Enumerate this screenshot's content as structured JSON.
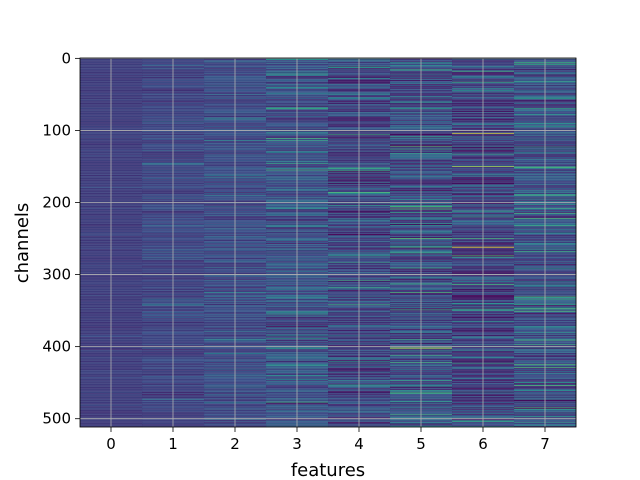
{
  "chart_data": {
    "type": "heatmap",
    "title": "",
    "xlabel": "features",
    "ylabel": "channels",
    "x_categories": [
      0,
      1,
      2,
      3,
      4,
      5,
      6,
      7
    ],
    "xlim": [
      -0.5,
      7.5
    ],
    "ylim": [
      511.5,
      -0.5
    ],
    "y_inverted": true,
    "xticks": [
      0,
      1,
      2,
      3,
      4,
      5,
      6,
      7
    ],
    "yticks": [
      0,
      100,
      200,
      300,
      400,
      500
    ],
    "n_rows": 512,
    "colormap": "viridis",
    "colormap_stops": [
      "#440154",
      "#3b528b",
      "#21918c",
      "#5ec962",
      "#fde725"
    ],
    "grid": true,
    "grid_color": "#b0b0b0",
    "legend": "none",
    "column_profiles": [
      {
        "feature": 0,
        "base_level": 0.18,
        "variation": 0.03
      },
      {
        "feature": 1,
        "base_level": 0.2,
        "variation": 0.06
      },
      {
        "feature": 2,
        "base_level": 0.22,
        "variation": 0.08
      },
      {
        "feature": 3,
        "base_level": 0.24,
        "variation": 0.12
      },
      {
        "feature": 4,
        "base_level": 0.2,
        "variation": 0.14
      },
      {
        "feature": 5,
        "base_level": 0.22,
        "variation": 0.16
      },
      {
        "feature": 6,
        "base_level": 0.18,
        "variation": 0.14
      },
      {
        "feature": 7,
        "base_level": 0.22,
        "variation": 0.14
      }
    ],
    "highlight_rows": [
      {
        "feature": 6,
        "channel": 104,
        "value": 0.95
      },
      {
        "feature": 6,
        "channel": 150,
        "value": 0.85
      },
      {
        "feature": 6,
        "channel": 262,
        "value": 1.0
      },
      {
        "feature": 6,
        "channel": 274,
        "value": 0.7
      },
      {
        "feature": 5,
        "channel": 402,
        "value": 0.95
      },
      {
        "feature": 5,
        "channel": 70,
        "value": 0.55
      },
      {
        "feature": 6,
        "channel": 220,
        "value": 0.55
      },
      {
        "feature": 7,
        "channel": 190,
        "value": 0.6
      },
      {
        "feature": 4,
        "channel": 106,
        "value": 0.6
      }
    ]
  }
}
